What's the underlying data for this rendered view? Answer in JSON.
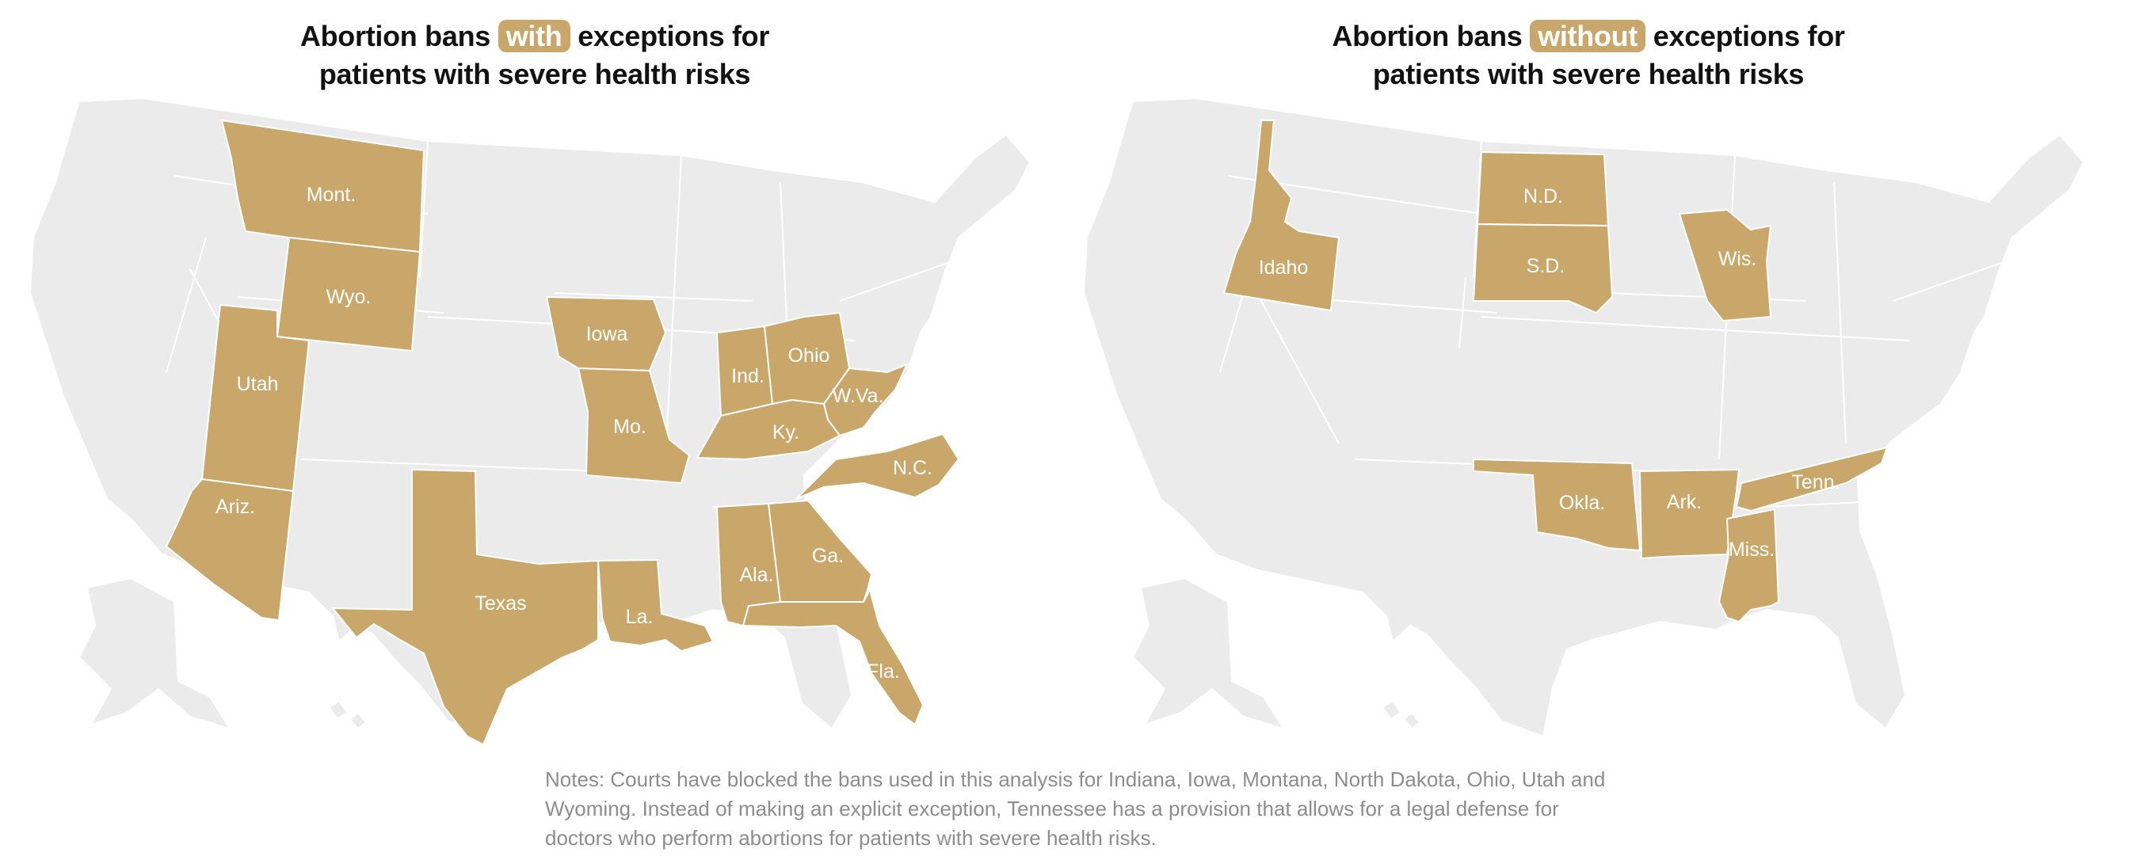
{
  "colors": {
    "highlight": "#c9a76a",
    "base": "#ebebeb",
    "border": "#ffffff",
    "title": "#121212",
    "notes": "#8d8d8d"
  },
  "maps": [
    {
      "title_before": "Abortion bans",
      "title_highlight": "with",
      "title_after": "exceptions for",
      "title_line2": "patients with severe health risks",
      "states": [
        "Mont.",
        "Wyo.",
        "Utah",
        "Ariz.",
        "Texas",
        "Iowa",
        "Mo.",
        "La.",
        "Ind.",
        "Ohio",
        "W.Va.",
        "Ky.",
        "N.C.",
        "Ala.",
        "Ga.",
        "Fla."
      ]
    },
    {
      "title_before": "Abortion bans",
      "title_highlight": "without",
      "title_after": "exceptions for",
      "title_line2": "patients with severe health risks",
      "states": [
        "Idaho",
        "N.D.",
        "S.D.",
        "Wis.",
        "Okla.",
        "Ark.",
        "Tenn.",
        "Miss."
      ]
    }
  ],
  "notes": "Notes: Courts have blocked the bans used in this analysis for Indiana, Iowa, Montana, North Dakota, Ohio, Utah and Wyoming. Instead of making an explicit exception, Tennessee has a provision that allows for a legal defense for doctors who perform abortions for patients with severe health risks."
}
